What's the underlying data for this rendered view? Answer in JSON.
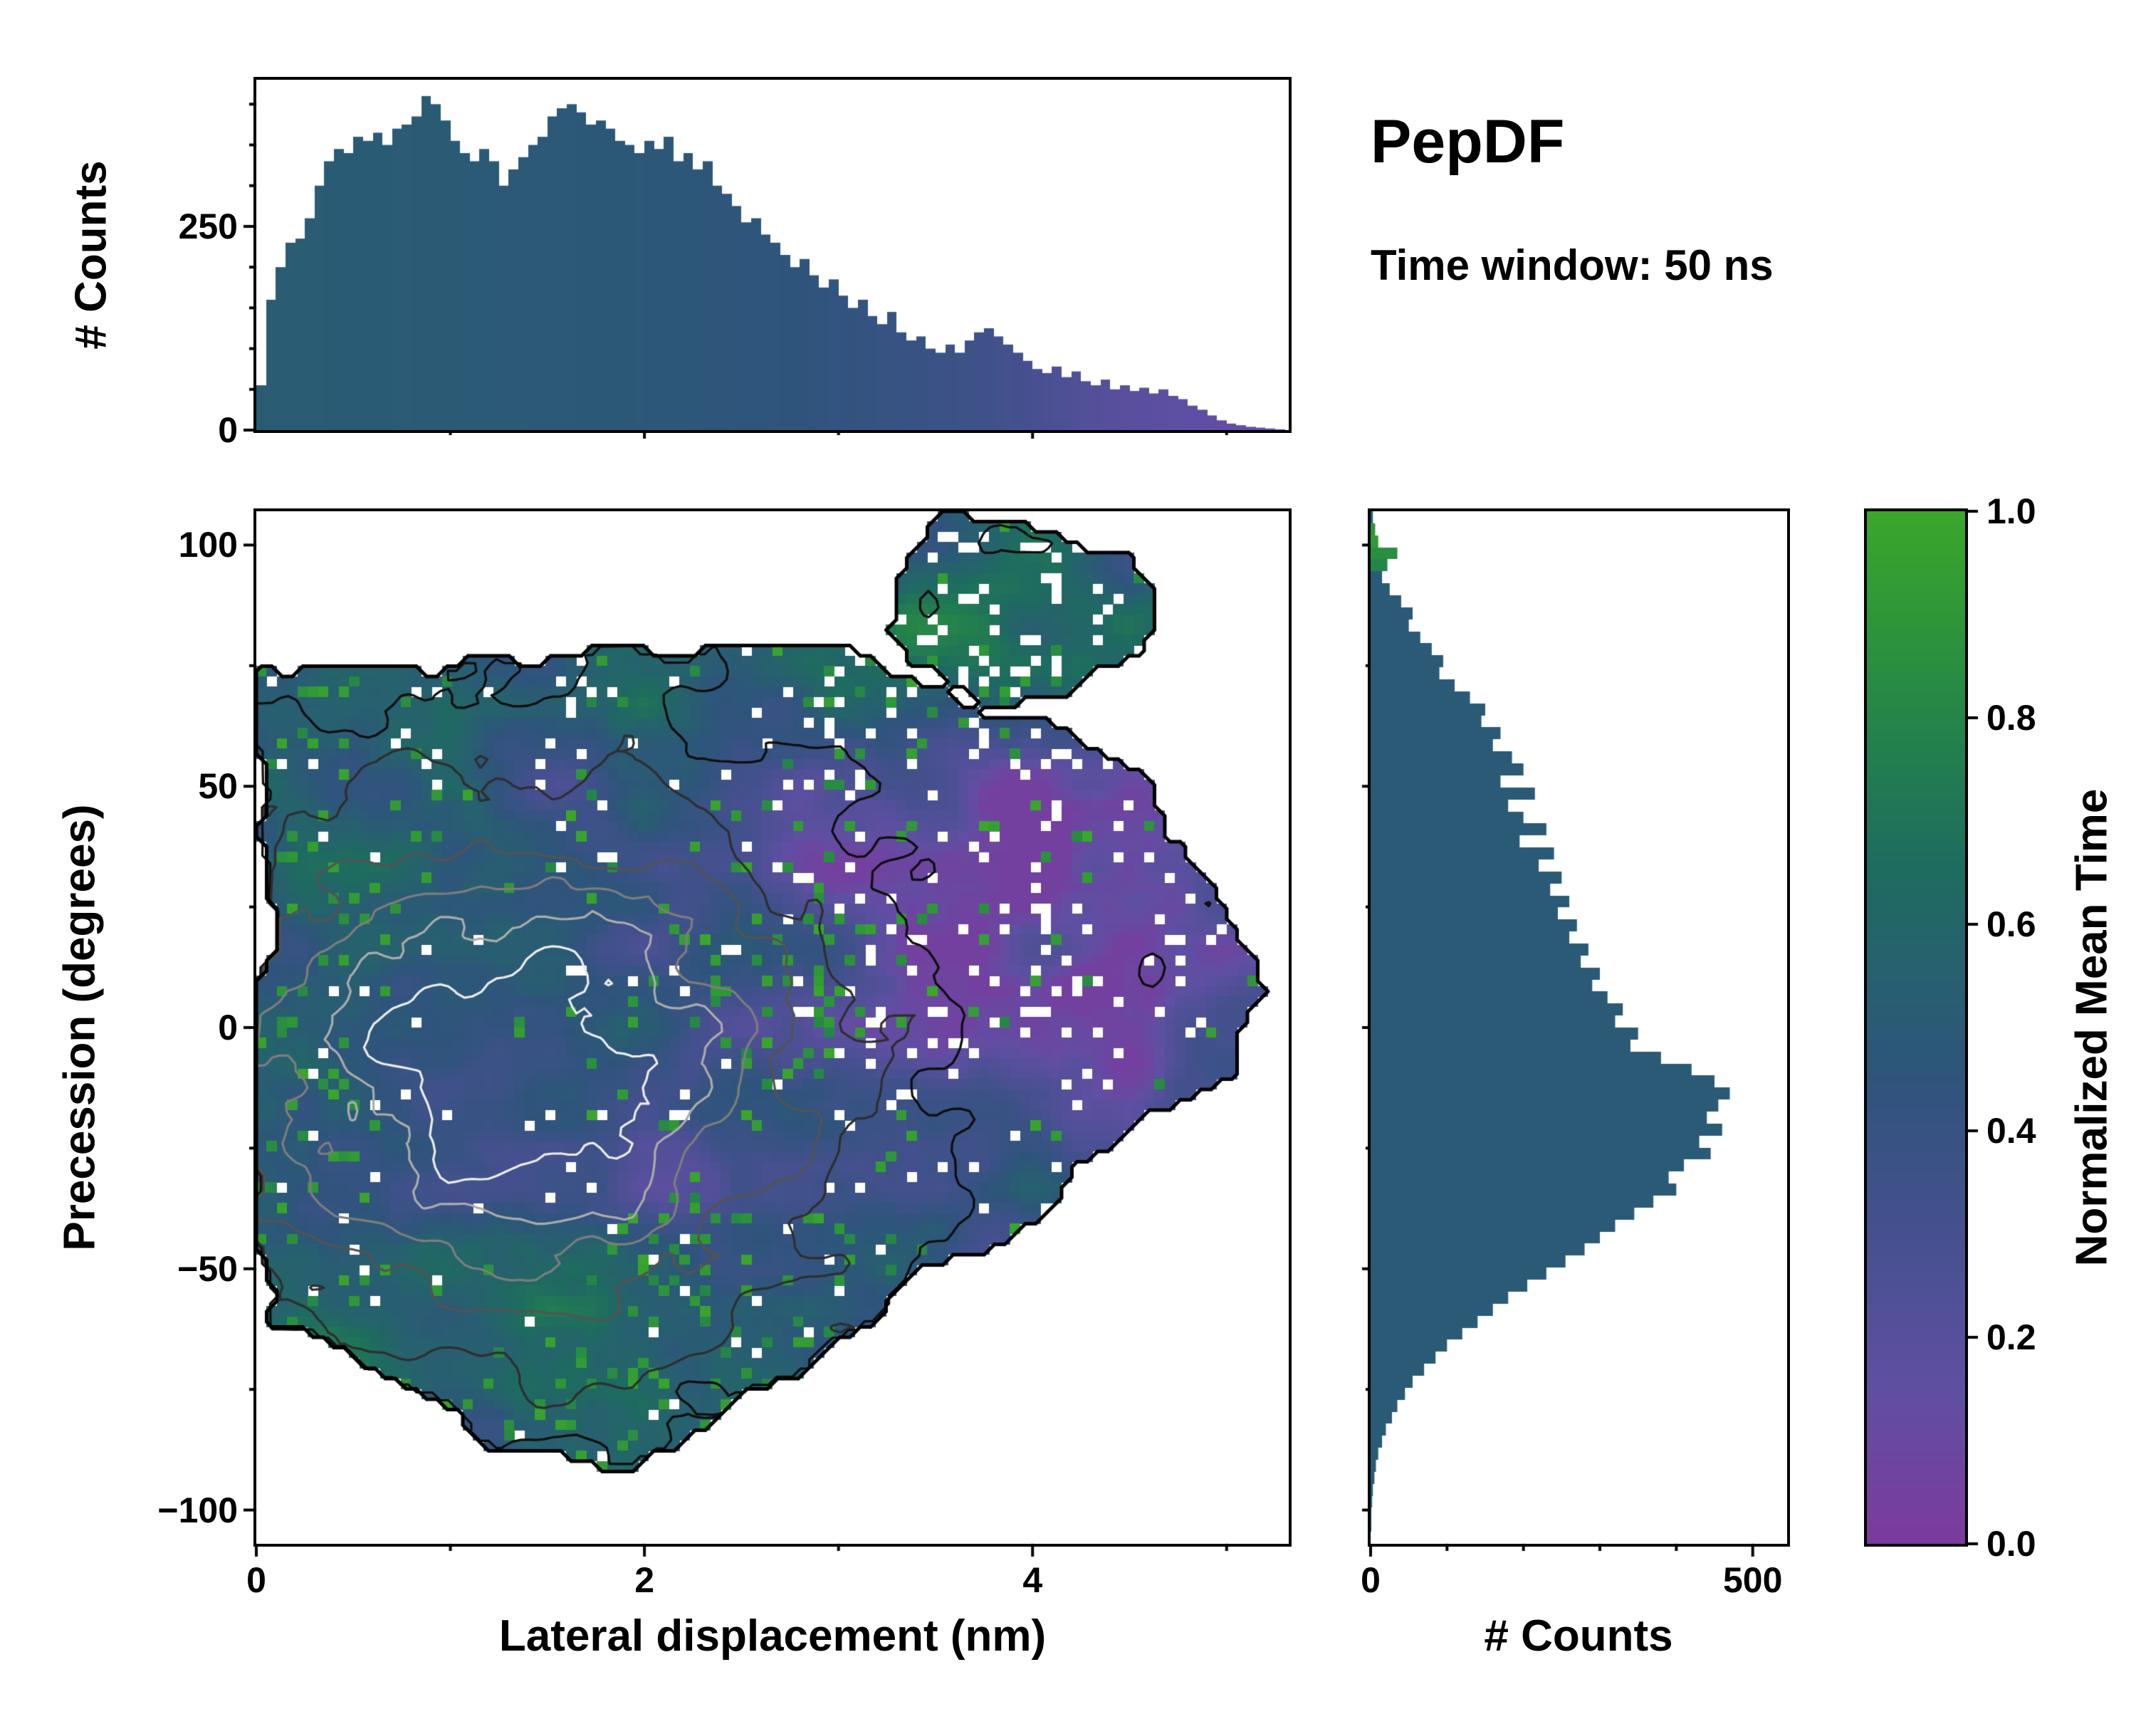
{
  "annotations": {
    "title": "PepDF",
    "subtitle": "Time window: 50 ns"
  },
  "colorbar": {
    "label": "Normalized Mean Time",
    "ticks": [
      {
        "v": 0.0,
        "label": "0.0"
      },
      {
        "v": 0.2,
        "label": "0.2"
      },
      {
        "v": 0.4,
        "label": "0.4"
      },
      {
        "v": 0.6,
        "label": "0.6"
      },
      {
        "v": 0.8,
        "label": "0.8"
      },
      {
        "v": 1.0,
        "label": "1.0"
      }
    ],
    "stops": [
      [
        0.0,
        "#7c3a9e"
      ],
      [
        0.15,
        "#5f4fa2"
      ],
      [
        0.3,
        "#46508f"
      ],
      [
        0.45,
        "#2f547c"
      ],
      [
        0.55,
        "#27606f"
      ],
      [
        0.65,
        "#1e6b60"
      ],
      [
        0.78,
        "#23814c"
      ],
      [
        0.9,
        "#2f9738"
      ],
      [
        1.0,
        "#3ba62b"
      ]
    ]
  },
  "chart_data": [
    {
      "id": "lateral_displacement_histogram",
      "type": "bar",
      "orientation": "vertical",
      "ylabel": "# Counts",
      "xlim": [
        0,
        5.32
      ],
      "ylim": [
        0,
        430
      ],
      "bin_width": 0.05,
      "values": [
        55,
        160,
        200,
        230,
        235,
        260,
        300,
        330,
        345,
        340,
        360,
        355,
        365,
        350,
        370,
        375,
        385,
        410,
        400,
        380,
        355,
        340,
        330,
        345,
        330,
        300,
        320,
        335,
        350,
        360,
        385,
        395,
        400,
        390,
        375,
        380,
        370,
        355,
        350,
        340,
        355,
        345,
        360,
        330,
        340,
        320,
        330,
        300,
        290,
        275,
        255,
        260,
        240,
        230,
        215,
        200,
        210,
        190,
        175,
        185,
        165,
        150,
        160,
        140,
        130,
        145,
        120,
        110,
        115,
        100,
        95,
        105,
        95,
        110,
        120,
        125,
        115,
        105,
        95,
        85,
        75,
        70,
        78,
        65,
        72,
        60,
        55,
        62,
        50,
        55,
        48,
        52,
        45,
        50,
        42,
        38,
        30,
        25,
        18,
        12,
        8,
        6,
        4,
        3,
        2,
        1
      ],
      "tint_by_x": [
        [
          0,
          0.52
        ],
        [
          1,
          0.5
        ],
        [
          2,
          0.48
        ],
        [
          2.8,
          0.45
        ],
        [
          3.3,
          0.4
        ],
        [
          3.8,
          0.34
        ],
        [
          4.1,
          0.27
        ],
        [
          4.4,
          0.2
        ],
        [
          4.8,
          0.15
        ],
        [
          5.32,
          0.12
        ]
      ],
      "yticks": [
        {
          "v": 250,
          "label": "250"
        },
        {
          "v": 0,
          "label": "0"
        }
      ],
      "yminor": [
        50,
        100,
        150,
        200,
        300,
        350,
        400
      ],
      "xmajor_unlabeled": [
        2,
        4
      ],
      "xminor": [
        1,
        3,
        5
      ]
    },
    {
      "id": "joint_heatmap",
      "type": "heatmap",
      "xlabel": "Lateral displacement (nm)",
      "ylabel": "Precession (degrees)",
      "zlabel": "Normalized Mean Time",
      "xlim": [
        0,
        5.32
      ],
      "ylim": [
        -107,
        107
      ],
      "grid": {
        "nx": 100,
        "ny": 100
      },
      "seed": 7,
      "noise": {
        "scale_x": 2.0,
        "scale_y": 0.06,
        "amp": 0.55,
        "base": 0.4
      },
      "footprint_main": [
        [
          0,
          -62
        ],
        [
          0,
          72
        ],
        [
          0.8,
          76
        ],
        [
          1.4,
          72
        ],
        [
          1.8,
          78
        ],
        [
          2.6,
          74
        ],
        [
          3.0,
          80
        ],
        [
          3.3,
          72
        ],
        [
          3.7,
          70
        ],
        [
          4.05,
          66
        ],
        [
          4.3,
          58
        ],
        [
          4.62,
          52
        ],
        [
          4.95,
          32
        ],
        [
          5.25,
          8
        ],
        [
          5.05,
          -8
        ],
        [
          4.5,
          -28
        ],
        [
          3.9,
          -40
        ],
        [
          3.35,
          -52
        ],
        [
          2.95,
          -62
        ],
        [
          2.7,
          -72
        ],
        [
          2.35,
          -82
        ],
        [
          1.85,
          -90
        ],
        [
          1.3,
          -86
        ],
        [
          0.8,
          -80
        ],
        [
          0.45,
          -72
        ],
        [
          0.2,
          -66
        ]
      ],
      "footprint_lobe": [
        [
          3.25,
          84
        ],
        [
          3.35,
          100
        ],
        [
          3.55,
          106
        ],
        [
          4.1,
          104
        ],
        [
          4.5,
          102
        ],
        [
          4.62,
          92
        ],
        [
          4.5,
          80
        ],
        [
          4.15,
          70
        ],
        [
          3.7,
          72
        ],
        [
          3.4,
          76
        ]
      ],
      "jitter": {
        "dx": 0.18,
        "dy": 7
      },
      "value_bumps": [
        {
          "cx": 4.2,
          "cy": 20,
          "sx": 0.95,
          "sy": 34,
          "amp": -0.3
        },
        {
          "cx": 3.4,
          "cy": 45,
          "sx": 0.8,
          "sy": 20,
          "amp": -0.1
        },
        {
          "cx": 3.85,
          "cy": 90,
          "sx": 0.75,
          "sy": 18,
          "amp": 0.22
        },
        {
          "cx": 2.9,
          "cy": 72,
          "sx": 1.0,
          "sy": 12,
          "amp": 0.16
        },
        {
          "cx": 1.2,
          "cy": -70,
          "sx": 1.6,
          "sy": 16,
          "amp": 0.14
        },
        {
          "cx": 0.35,
          "cy": 55,
          "sx": 0.5,
          "sy": 25,
          "amp": 0.1
        },
        {
          "cx": 0.8,
          "cy": -20,
          "sx": 0.9,
          "sy": 40,
          "amp": 0.06
        }
      ],
      "speckle": {
        "base": 0.025,
        "value_min": 0.8,
        "clusters": [
          {
            "cx": 2.75,
            "cy": 10,
            "sx": 0.35,
            "sy": 14,
            "amp": 0.22
          },
          {
            "cx": 2.35,
            "cy": -47,
            "sx": 0.4,
            "sy": 10,
            "amp": 0.18
          },
          {
            "cx": 0.12,
            "cy": 30,
            "sx": 0.25,
            "sy": 60,
            "amp": 0.1
          },
          {
            "cx": 1.9,
            "cy": -80,
            "sx": 1.2,
            "sy": 10,
            "amp": 0.08
          },
          {
            "cx": 3.6,
            "cy": 60,
            "sx": 0.5,
            "sy": 12,
            "amp": 0.15
          }
        ]
      },
      "holes": {
        "base": 0.018,
        "clusters": [
          {
            "cx": 4.1,
            "cy": 25,
            "sx": 1.0,
            "sy": 30,
            "amp": 0.09
          },
          {
            "cx": 3.9,
            "cy": 90,
            "sx": 0.8,
            "sy": 18,
            "amp": 0.1
          },
          {
            "cx": 2.6,
            "cy": 60,
            "sx": 1.2,
            "sy": 15,
            "amp": 0.05
          }
        ]
      },
      "contours": {
        "grid": 130,
        "center": [
          1.35,
          -10
        ],
        "sigma": [
          1.15,
          40
        ],
        "noise_amp": 0.18,
        "levels": [
          0.12,
          0.28,
          0.44,
          0.6,
          0.74,
          0.86
        ],
        "colors": [
          "#0d0d0d",
          "#2e2e2e",
          "#535353",
          "#7d7d7d",
          "#ababab",
          "#ececec"
        ],
        "outline_color": "#000000",
        "outline_width": 5,
        "line_width": 3.2
      },
      "xticks": [
        {
          "v": 0,
          "label": "0"
        },
        {
          "v": 2,
          "label": "2"
        },
        {
          "v": 4,
          "label": "4"
        }
      ],
      "xminor": [
        1,
        3,
        5
      ],
      "yticks": [
        {
          "v": 100,
          "label": "100"
        },
        {
          "v": 50,
          "label": "50"
        },
        {
          "v": 0,
          "label": "0"
        },
        {
          "v": -50,
          "label": "−50"
        },
        {
          "v": -100,
          "label": "−100"
        }
      ],
      "yminor": [
        75,
        25,
        -25,
        -75
      ]
    },
    {
      "id": "precession_histogram",
      "type": "bar",
      "orientation": "horizontal",
      "xlabel": "# Counts",
      "xlim": [
        0,
        545
      ],
      "ylim": [
        -107,
        107
      ],
      "bin_width_deg": 2.5,
      "values_top_to_bottom": [
        3,
        6,
        10,
        35,
        22,
        15,
        25,
        40,
        55,
        50,
        65,
        80,
        95,
        90,
        110,
        130,
        150,
        145,
        170,
        160,
        185,
        200,
        170,
        215,
        180,
        200,
        230,
        195,
        240,
        220,
        250,
        235,
        260,
        245,
        270,
        260,
        285,
        275,
        300,
        290,
        310,
        330,
        320,
        350,
        340,
        380,
        420,
        450,
        470,
        455,
        440,
        460,
        430,
        445,
        410,
        390,
        400,
        370,
        345,
        320,
        300,
        280,
        255,
        230,
        205,
        180,
        160,
        140,
        120,
        100,
        85,
        70,
        55,
        45,
        35,
        28,
        20,
        15,
        10,
        7,
        5,
        3,
        2,
        1,
        1,
        0
      ],
      "tint_default": 0.5,
      "tint_overrides": [
        [
          1,
          0.88
        ],
        [
          2,
          0.92
        ],
        [
          3,
          0.85
        ],
        [
          4,
          0.8
        ]
      ],
      "xticks": [
        {
          "v": 0,
          "label": "0"
        },
        {
          "v": 500,
          "label": "500"
        }
      ],
      "xminor": [
        100,
        200,
        300,
        400
      ]
    }
  ]
}
